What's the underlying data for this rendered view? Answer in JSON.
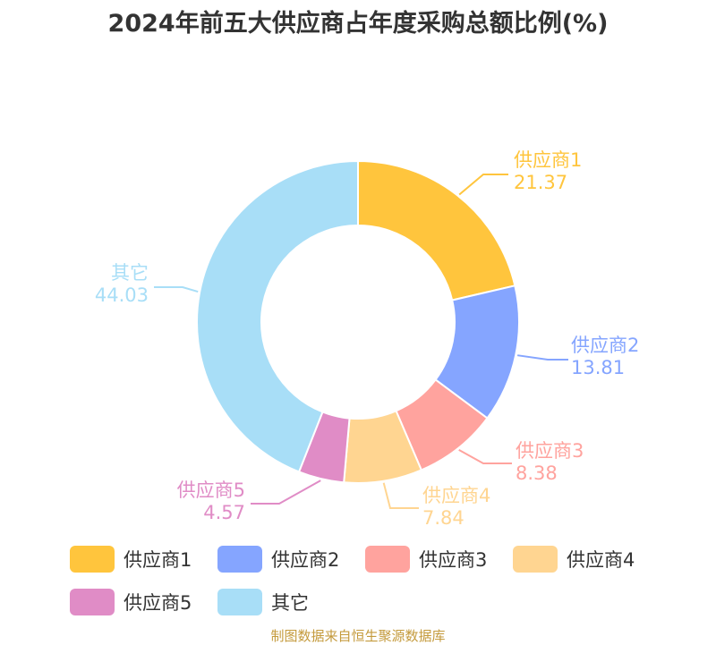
{
  "chart_data": {
    "type": "pie",
    "title": "2024年前五大供应商占年度采购总额比例(%)",
    "categories": [
      "供应商1",
      "供应商2",
      "供应商3",
      "供应商4",
      "供应商5",
      "其它"
    ],
    "values": [
      21.37,
      13.81,
      8.38,
      7.84,
      4.57,
      44.03
    ],
    "colors": [
      "#ffc53d",
      "#85a5ff",
      "#ffa39e",
      "#ffd591",
      "#e08cc6",
      "#a8def7"
    ],
    "donut": true,
    "legend": "bottom"
  },
  "source": "制图数据来自恒生聚源数据库"
}
